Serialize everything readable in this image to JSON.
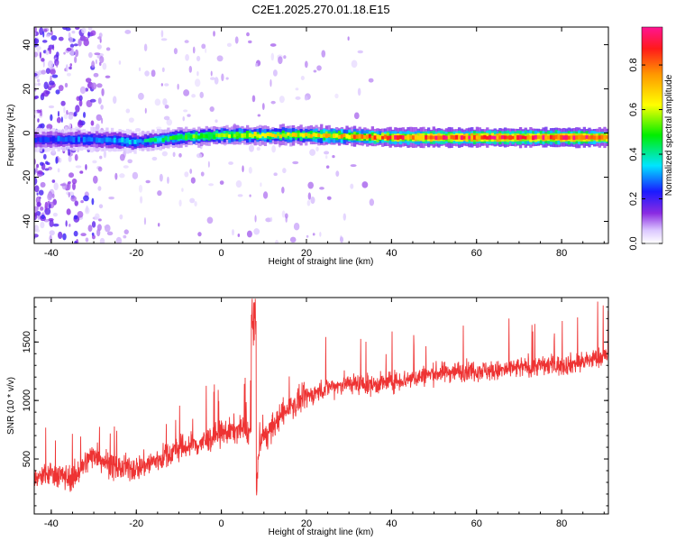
{
  "title": "C2E1.2025.270.01.18.E15",
  "chart_data": [
    {
      "type": "heatmap",
      "title": "C2E1.2025.270.01.18.E15",
      "xlabel": "Height of straight line (km)",
      "ylabel": "Frequency (Hz)",
      "xlim": [
        -44,
        91
      ],
      "ylim": [
        -50,
        48
      ],
      "xticks": [
        -40,
        -20,
        0,
        20,
        40,
        60,
        80
      ],
      "yticks": [
        -40,
        -20,
        0,
        20,
        40
      ],
      "colorbar": {
        "label": "Normalized spectral amplitude",
        "range": [
          0.0,
          0.97
        ],
        "ticks": [
          0.0,
          0.2,
          0.4,
          0.6,
          0.8
        ],
        "colormap": "rainbow (white-violet-blue-cyan-green-yellow-orange-red-magenta)"
      },
      "ridge": {
        "description": "main energy band near 0 Hz, amplitude increasing with height",
        "frequency_hz": [
          [
            -44,
            -3
          ],
          [
            -30,
            -3
          ],
          [
            -20,
            -4
          ],
          [
            -10,
            -2
          ],
          [
            0,
            -1
          ],
          [
            20,
            -1
          ],
          [
            40,
            -2
          ],
          [
            60,
            -2
          ],
          [
            80,
            -2
          ],
          [
            90,
            -2
          ]
        ],
        "amplitude": [
          [
            -44,
            0.25
          ],
          [
            -30,
            0.3
          ],
          [
            -20,
            0.35
          ],
          [
            -10,
            0.5
          ],
          [
            0,
            0.6
          ],
          [
            20,
            0.65
          ],
          [
            40,
            0.85
          ],
          [
            60,
            0.9
          ],
          [
            80,
            0.92
          ],
          [
            90,
            0.9
          ]
        ]
      }
    },
    {
      "type": "line",
      "xlabel": "Height of straight line (km)",
      "ylabel": "SNR (10 * v/v)",
      "xlim": [
        -44,
        91
      ],
      "ylim": [
        30,
        1880
      ],
      "xticks": [
        -40,
        -20,
        0,
        20,
        40,
        60,
        80
      ],
      "yticks": [
        500,
        1000,
        1500
      ],
      "color": "#ee3333",
      "series": [
        {
          "x": [
            -44,
            -40,
            -35,
            -30,
            -25,
            -20,
            -15,
            -10,
            -5,
            0,
            5,
            7,
            7.5,
            8,
            9,
            10,
            15,
            20,
            25,
            30,
            35,
            40,
            45,
            50,
            55,
            60,
            65,
            70,
            75,
            80,
            85,
            90
          ],
          "y": [
            320,
            380,
            330,
            550,
            420,
            420,
            490,
            590,
            630,
            720,
            760,
            720,
            1850,
            150,
            650,
            680,
            910,
            1030,
            1110,
            1150,
            1130,
            1160,
            1190,
            1230,
            1250,
            1260,
            1250,
            1280,
            1300,
            1300,
            1330,
            1380
          ]
        }
      ]
    }
  ]
}
